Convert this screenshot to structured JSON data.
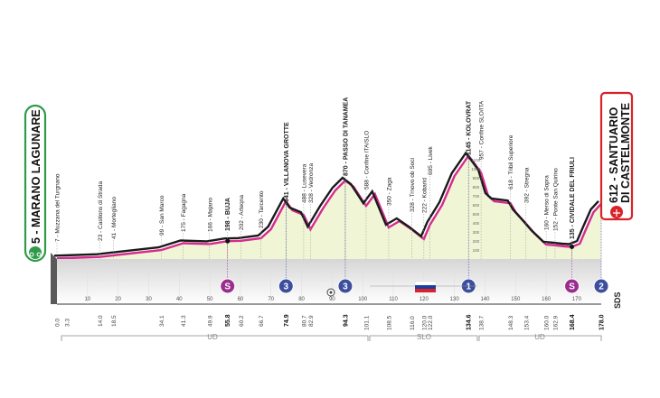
{
  "start": {
    "label": "5 - MARANO LAGUNARE"
  },
  "finish": {
    "line1": "612 - SANTUARIO",
    "line2": "DI CASTELMONTE"
  },
  "ruler": {
    "ticks": [
      "10",
      "20",
      "30",
      "40",
      "50",
      "60",
      "70",
      "80",
      "90",
      "100",
      "110",
      "120",
      "130",
      "140",
      "150",
      "160",
      "170"
    ]
  },
  "waypoints": [
    {
      "label": "7 - Muzzana del Turgnano",
      "km": "0.0",
      "bold": false
    },
    {
      "label": "",
      "km": "3.3",
      "bold": false
    },
    {
      "label": "23 - Castions di Strada",
      "km": "14.0",
      "bold": false
    },
    {
      "label": "41 - Mortegliano",
      "km": "18.5",
      "bold": false
    },
    {
      "label": "99 - San Marco",
      "km": "34.1",
      "bold": false
    },
    {
      "label": "175 - Fagagna",
      "km": "41.3",
      "bold": false
    },
    {
      "label": "166 - Majano",
      "km": "49.9",
      "bold": false
    },
    {
      "label": "198 - BUJA",
      "km": "55.8",
      "bold": true
    },
    {
      "label": "202 - Arteqna",
      "km": "60.2",
      "bold": false
    },
    {
      "label": "230 - Tarcento",
      "km": "66.7",
      "bold": false
    },
    {
      "label": "641 - VILLANOVA GROTTE",
      "km": "74.9",
      "bold": true
    },
    {
      "label": "488 - Lusevera",
      "km": "80.7",
      "bold": false
    },
    {
      "label": "328 - Vedronza",
      "km": "82.9",
      "bold": false
    },
    {
      "label": "870 - PASSO DI TANAMEA",
      "km": "94.3",
      "bold": true
    },
    {
      "label": "588 - Confine ITA/SLO",
      "km": "101.1",
      "bold": false
    },
    {
      "label": "350 - Zaga",
      "km": "108.5",
      "bold": false
    },
    {
      "label": "328 - Trnovo ob Soci",
      "km": "116.0",
      "bold": false
    },
    {
      "label": "222 - Kobarid",
      "km": "120.0",
      "bold": false
    },
    {
      "label": "695 - Livek",
      "km": "122.0",
      "bold": false
    },
    {
      "label": "1145 - KOLOVRAT",
      "km": "134.6",
      "bold": true
    },
    {
      "label": "957 - Confine SLO/ITA",
      "km": "138.7",
      "bold": false
    },
    {
      "label": "618 - Tribil Superiore",
      "km": "148.3",
      "bold": false
    },
    {
      "label": "392 - Stregna",
      "km": "153.4",
      "bold": false
    },
    {
      "label": "160 - Merso di Sopra",
      "km": "160.0",
      "bold": false
    },
    {
      "label": "152 - Ponte San Quirino",
      "km": "162.9",
      "bold": false
    },
    {
      "label": "135 - CIVIDALE DEL FRIULI",
      "km": "168.4",
      "bold": true
    },
    {
      "label": "",
      "km": "178.0",
      "bold": true
    }
  ],
  "elevation_scale": [
    "1100",
    "1000",
    "900",
    "800",
    "700",
    "600",
    "500",
    "400",
    "300",
    "200",
    "100"
  ],
  "markers": [
    {
      "type": "sprint",
      "label": "S"
    },
    {
      "type": "kom",
      "label": "3"
    },
    {
      "type": "kom",
      "label": "3"
    },
    {
      "type": "kom",
      "label": "1"
    },
    {
      "type": "sprint",
      "label": "S"
    },
    {
      "type": "kom",
      "label": "2"
    }
  ],
  "regions": [
    "UD",
    "SLO",
    "UD"
  ],
  "logo": {
    "label": "SDS"
  },
  "colors": {
    "profile_fill": "#f0f5d6",
    "profile_line": "#d62b8e",
    "kom_blue": "#3d4e9e",
    "sprint_purple": "#9a2d8e",
    "start_green": "#2e9a4a",
    "finish_red": "#d8232a"
  }
}
